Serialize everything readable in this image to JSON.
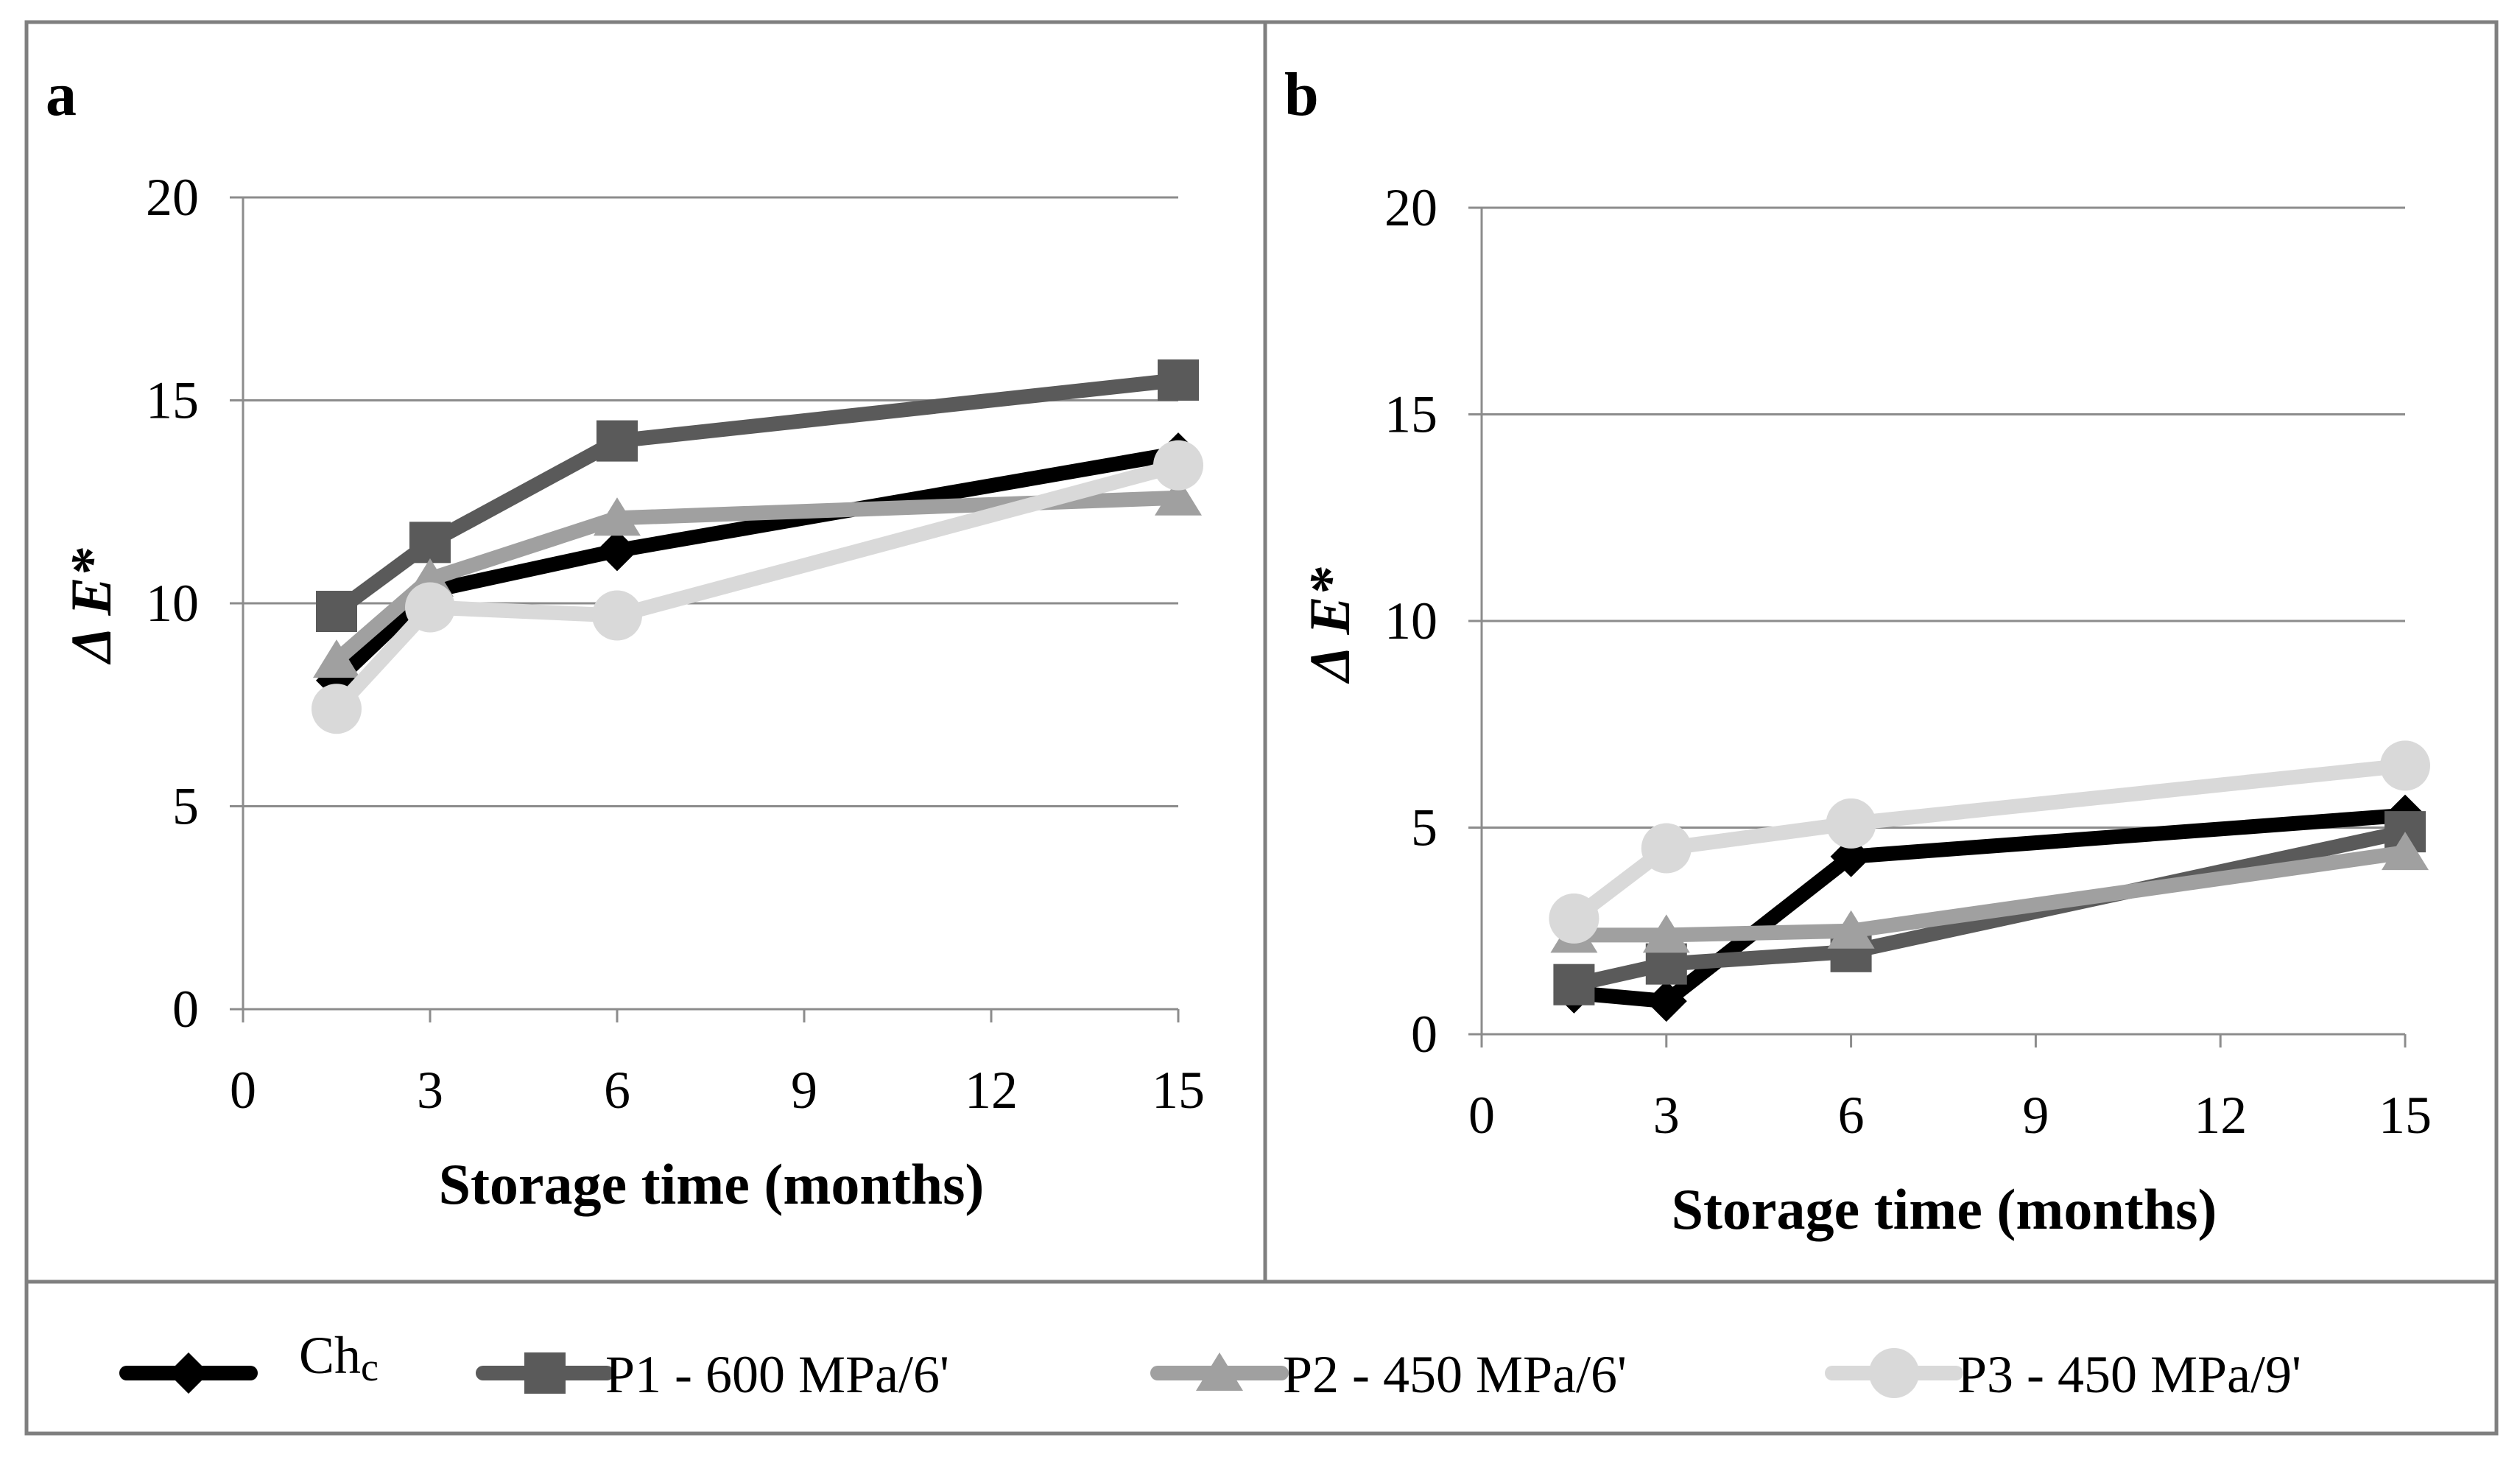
{
  "chart_data": [
    {
      "panel": "a",
      "type": "line",
      "xlabel": "Storage time (months)",
      "ylabel": "Δ E*",
      "xlim": [
        0,
        15
      ],
      "ylim": [
        0,
        20
      ],
      "xticks": [
        0,
        3,
        6,
        9,
        12,
        15
      ],
      "yticks": [
        0,
        5,
        10,
        15,
        20
      ],
      "grid": true,
      "series": [
        {
          "name": "Chc",
          "x": [
            1.5,
            3,
            6,
            15
          ],
          "values": [
            8.1,
            10.3,
            11.3,
            13.7
          ]
        },
        {
          "name": "P1 - 600 MPa/6'",
          "x": [
            1.5,
            3,
            6,
            15
          ],
          "values": [
            9.8,
            11.5,
            14.0,
            15.5
          ]
        },
        {
          "name": "P2 - 450 MPa/6'",
          "x": [
            1.5,
            3,
            6,
            15
          ],
          "values": [
            8.6,
            10.6,
            12.1,
            12.6
          ]
        },
        {
          "name": "P3 - 450 MPa/9'",
          "x": [
            1.5,
            3,
            6,
            15
          ],
          "values": [
            7.4,
            9.9,
            9.7,
            13.4
          ]
        }
      ]
    },
    {
      "panel": "b",
      "type": "line",
      "xlabel": "Storage time (months)",
      "ylabel": "Δ E*",
      "xlim": [
        0,
        15
      ],
      "ylim": [
        0,
        20
      ],
      "xticks": [
        0,
        3,
        6,
        9,
        12,
        15
      ],
      "yticks": [
        0,
        5,
        10,
        15,
        20
      ],
      "grid": true,
      "series": [
        {
          "name": "Chc",
          "x": [
            1.5,
            3,
            6,
            15
          ],
          "values": [
            1.0,
            0.8,
            4.3,
            5.3
          ]
        },
        {
          "name": "P1 - 600 MPa/6'",
          "x": [
            1.5,
            3,
            6,
            15
          ],
          "values": [
            1.2,
            1.7,
            2.0,
            4.9
          ]
        },
        {
          "name": "P2 - 450 MPa/6'",
          "x": [
            1.5,
            3,
            6,
            15
          ],
          "values": [
            2.4,
            2.4,
            2.5,
            4.4
          ]
        },
        {
          "name": "P3 - 450 MPa/9'",
          "x": [
            1.5,
            3,
            6,
            15
          ],
          "values": [
            2.8,
            4.5,
            5.1,
            6.5
          ]
        }
      ]
    }
  ],
  "legend": {
    "entries": [
      {
        "name": "Chc",
        "text": "Ch",
        "sub": "c",
        "marker": "diamond",
        "color": "#000000"
      },
      {
        "name": "P1 - 600 MPa/6'",
        "text": "P1 - 600 MPa/6'",
        "marker": "square",
        "color": "#5a5a5a"
      },
      {
        "name": "P2 - 450 MPa/6'",
        "text": "P2 - 450 MPa/6'",
        "marker": "triangle",
        "color": "#a0a0a0"
      },
      {
        "name": "P3 - 450 MPa/9'",
        "text": "P3 - 450 MPa/9'",
        "marker": "circle",
        "color": "#d9d9d9"
      }
    ]
  },
  "colors": {
    "Chc": "#000000",
    "P1 - 600 MPa/6'": "#5a5a5a",
    "P2 - 450 MPa/6'": "#a0a0a0",
    "P3 - 450 MPa/9'": "#d9d9d9",
    "gridline": "#8c8c8c",
    "frame": "#7f7f7f"
  },
  "markers": {
    "Chc": "diamond",
    "P1 - 600 MPa/6'": "square",
    "P2 - 450 MPa/6'": "triangle",
    "P3 - 450 MPa/9'": "circle"
  }
}
